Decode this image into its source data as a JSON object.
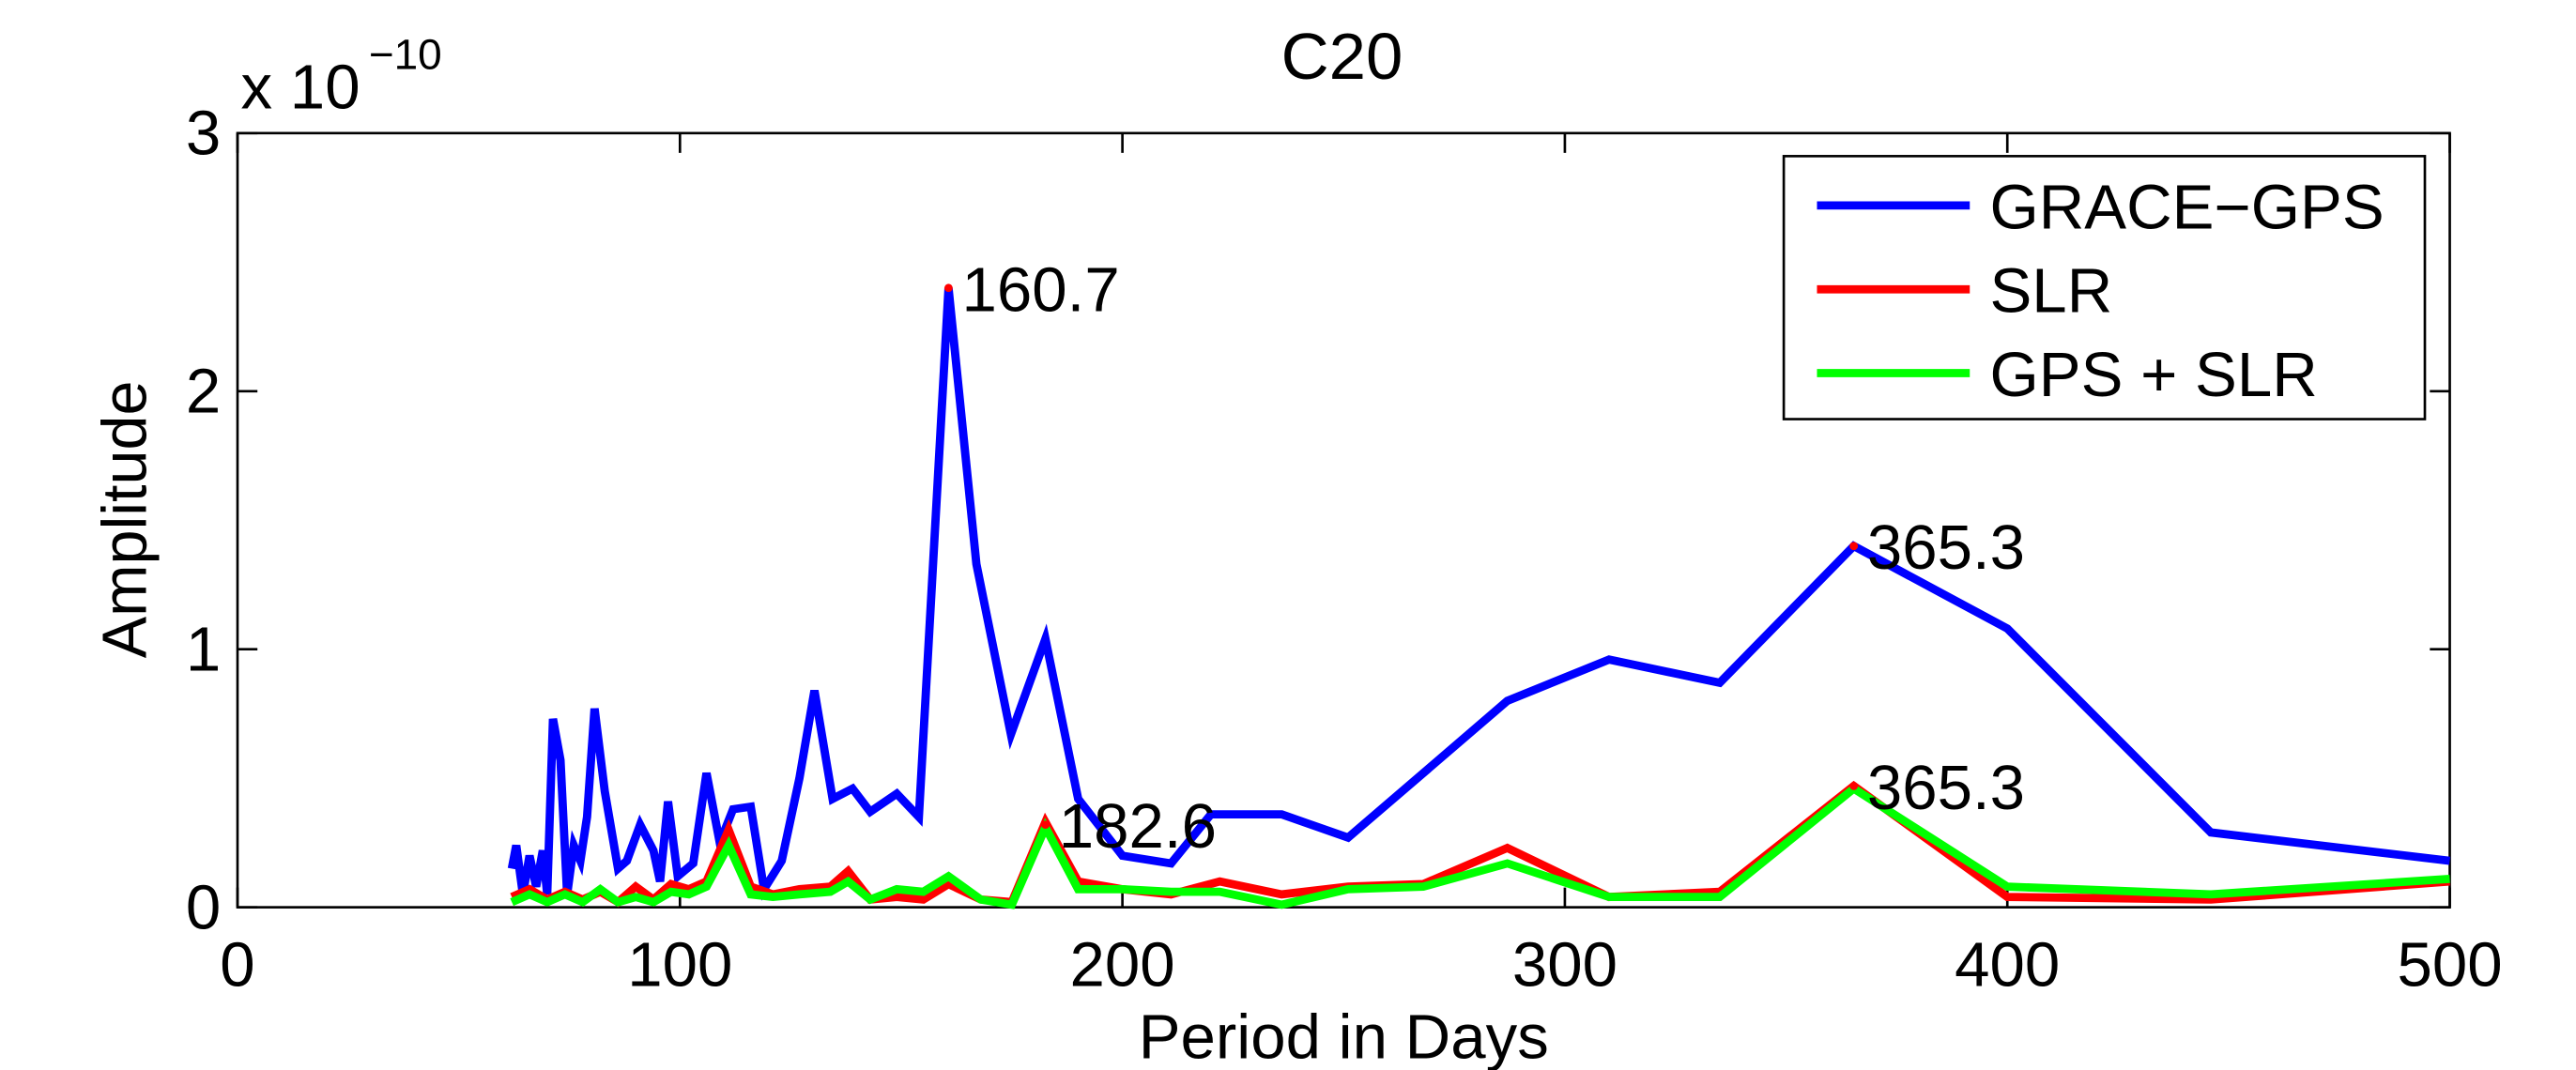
{
  "chart_data": {
    "type": "line",
    "title": "C20",
    "xlabel": "Period in Days",
    "ylabel": "Amplitude",
    "y_multiplier": "x 10",
    "y_exponent": "−10",
    "xlim": [
      0,
      500
    ],
    "ylim": [
      0,
      3
    ],
    "xticks": [
      0,
      100,
      200,
      300,
      400,
      500
    ],
    "yticks": [
      0,
      1,
      2,
      3
    ],
    "grid": false,
    "legend": "upper right",
    "series": [
      {
        "name": "GRACE−GPS",
        "color": "#0000ff",
        "x": [
          62,
          63,
          64.5,
          66,
          67.5,
          69,
          70,
          71.3,
          73,
          74.5,
          76,
          77.5,
          79,
          80.7,
          83,
          86,
          88,
          91,
          94,
          95.5,
          97.3,
          99.5,
          103,
          106,
          109,
          112,
          116,
          119,
          123,
          127,
          130.4,
          134.5,
          139,
          143,
          149,
          154,
          160.7,
          167,
          174.8,
          182.6,
          190,
          200,
          211,
          220,
          236,
          251,
          268,
          287,
          310,
          335,
          365.3,
          400,
          446,
          500
        ],
        "values": [
          0.15,
          0.24,
          0.05,
          0.2,
          0.08,
          0.22,
          0.05,
          0.73,
          0.57,
          0.05,
          0.24,
          0.18,
          0.35,
          0.77,
          0.45,
          0.15,
          0.18,
          0.32,
          0.22,
          0.1,
          0.41,
          0.12,
          0.17,
          0.52,
          0.25,
          0.38,
          0.39,
          0.07,
          0.18,
          0.5,
          0.84,
          0.42,
          0.46,
          0.37,
          0.44,
          0.35,
          2.4,
          1.33,
          0.67,
          1.04,
          0.42,
          0.2,
          0.17,
          0.36,
          0.36,
          0.27,
          0.52,
          0.8,
          0.96,
          0.87,
          1.4,
          1.08,
          0.29,
          0.18
        ]
      },
      {
        "name": "SLR",
        "color": "#ff0000",
        "x": [
          62,
          66,
          70,
          74,
          78,
          82,
          86,
          90,
          94,
          98,
          102,
          106,
          111,
          116,
          121,
          127,
          134,
          138,
          143,
          149,
          155,
          160.7,
          168,
          175,
          182.6,
          190,
          200,
          211,
          222,
          236,
          251,
          268,
          287,
          310,
          335,
          365.3,
          400,
          446,
          500
        ],
        "values": [
          0.04,
          0.07,
          0.03,
          0.06,
          0.03,
          0.06,
          0.02,
          0.08,
          0.03,
          0.09,
          0.07,
          0.1,
          0.3,
          0.08,
          0.05,
          0.07,
          0.08,
          0.14,
          0.03,
          0.04,
          0.03,
          0.09,
          0.03,
          0.02,
          0.33,
          0.1,
          0.07,
          0.05,
          0.1,
          0.05,
          0.08,
          0.09,
          0.23,
          0.04,
          0.06,
          0.47,
          0.04,
          0.03,
          0.1
        ]
      },
      {
        "name": "GPS + SLR",
        "color": "#00ff00",
        "x": [
          62,
          66,
          70,
          74,
          78,
          82,
          86,
          90,
          94,
          98,
          102,
          106,
          111,
          116,
          121,
          127,
          134,
          138,
          143,
          149,
          155,
          160.7,
          168,
          175,
          182.6,
          190,
          200,
          211,
          222,
          236,
          251,
          268,
          287,
          310,
          335,
          365.3,
          400,
          446,
          500
        ],
        "values": [
          0.02,
          0.05,
          0.02,
          0.05,
          0.02,
          0.07,
          0.02,
          0.04,
          0.02,
          0.06,
          0.05,
          0.08,
          0.24,
          0.05,
          0.04,
          0.05,
          0.06,
          0.1,
          0.03,
          0.07,
          0.06,
          0.12,
          0.03,
          0.01,
          0.31,
          0.07,
          0.07,
          0.06,
          0.06,
          0.01,
          0.07,
          0.08,
          0.17,
          0.04,
          0.04,
          0.46,
          0.08,
          0.05,
          0.11
        ]
      }
    ],
    "annotations": [
      {
        "text": "160.7",
        "x": 160.7,
        "y": 2.4
      },
      {
        "text": "182.6",
        "x": 182.6,
        "y": 0.32
      },
      {
        "text": "365.3",
        "x": 365.3,
        "y": 1.4
      },
      {
        "text": "365.3",
        "x": 365.3,
        "y": 0.47
      }
    ]
  }
}
